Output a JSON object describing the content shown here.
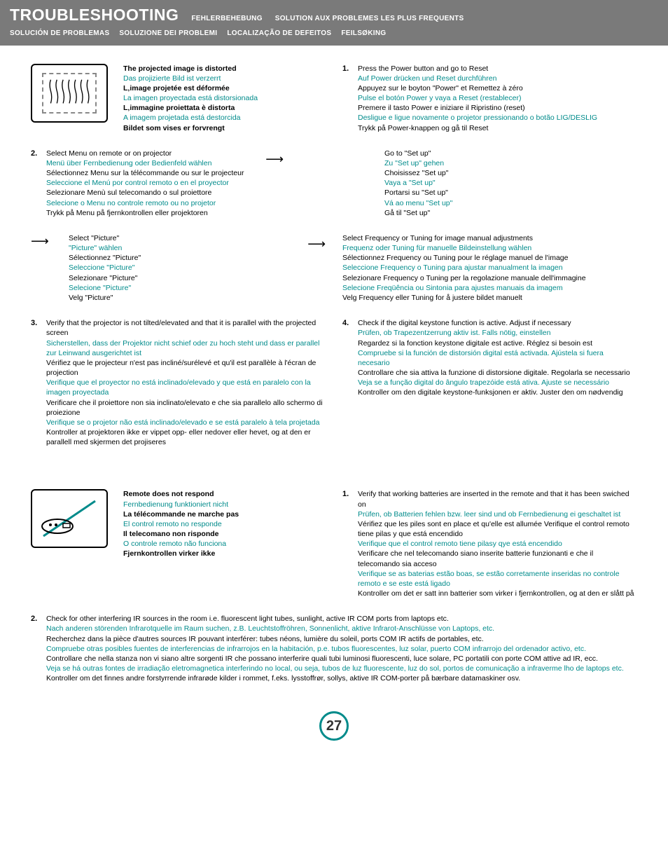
{
  "header": {
    "title": "TROUBLESHOOTING",
    "subs_row1": [
      "FEHLERBEHEBUNG",
      "SOLUTION AUX PROBLEMES LES PLUS FREQUENTS"
    ],
    "subs_row2": [
      "SOLUCIÓN DE PROBLEMAS",
      "SOLUZIONE DEI PROBLEMI",
      "LOCALIZAÇÃO DE DEFEITOS",
      "FEILSØKING"
    ]
  },
  "colors": {
    "teal": "#008b8b",
    "header_bg": "#7a7a7a",
    "text": "#000000"
  },
  "section1": {
    "heading": [
      {
        "t": "The projected image is distorted",
        "bold": true
      },
      {
        "t": "Das projizierte Bild ist verzerrt",
        "teal": true
      },
      {
        "t": "L‚image projetée est déformée",
        "bold": true
      },
      {
        "t": "La imagen proyectada está distorsionada",
        "teal": true
      },
      {
        "t": "L‚immagine proiettata è distorta",
        "bold": true
      },
      {
        "t": "A imagem projetada está destorcida",
        "teal": true
      },
      {
        "t": "Bildet som vises er forvrengt",
        "bold": true
      }
    ],
    "step1": {
      "num": "1.",
      "lines": [
        {
          "t": "Press the Power button and go to Reset"
        },
        {
          "t": "Auf Power drücken und Reset durchführen",
          "teal": true
        },
        {
          "t": "Appuyez sur le boyton \"Power\" et Remettez à zéro"
        },
        {
          "t": "Pulse el botón Power y vaya a Reset (restablecer)",
          "teal": true
        },
        {
          "t": "Premere il tasto Power e iniziare il Ripristino (reset)"
        },
        {
          "t": "Desligue e ligue novamente o projetor pressionando o botão LIG/DESLIG",
          "teal": true
        },
        {
          "t": "Trykk på Power-knappen og gå til Reset"
        }
      ]
    },
    "step2": {
      "num": "2.",
      "left": [
        {
          "t": "Select Menu on remote or on projector"
        },
        {
          "t": "Menü über Fernbedienung oder Bedienfeld wählen",
          "teal": true
        },
        {
          "t": "Sélectionnez Menu sur la télécommande ou sur le projecteur"
        },
        {
          "t": "Seleccione el Menú por control remoto o en el proyector",
          "teal": true
        },
        {
          "t": "Selezionare Menù sul telecomando o sul proiettore"
        },
        {
          "t": "Selecione o Menu no controle remoto ou no projetor",
          "teal": true
        },
        {
          "t": "Trykk på Menu på fjernkontrollen eller projektoren"
        }
      ],
      "right": [
        {
          "t": "Go to \"Set up\""
        },
        {
          "t": "Zu \"Set up\" gehen",
          "teal": true
        },
        {
          "t": "Choisissez \"Set up\""
        },
        {
          "t": "Vaya a \"Set up\"",
          "teal": true
        },
        {
          "t": "Portarsi su \"Set up\""
        },
        {
          "t": "Vá ao menu \"Set up\"",
          "teal": true
        },
        {
          "t": "Gå til \"Set up\""
        }
      ]
    },
    "picture": {
      "left": [
        {
          "t": "Select \"Picture\""
        },
        {
          "t": "\"Picture\" wählen",
          "teal": true
        },
        {
          "t": "Sélectionnez \"Picture\""
        },
        {
          "t": "Seleccione \"Picture\"",
          "teal": true
        },
        {
          "t": "Selezionare \"Picture\""
        },
        {
          "t": "Selecione \"Picture\"",
          "teal": true
        },
        {
          "t": "Velg \"Picture\""
        }
      ],
      "right": [
        {
          "t": "Select Frequency or Tuning for image manual adjustments"
        },
        {
          "t": "Frequenz oder Tuning für manuelle Bildeinstellung wählen",
          "teal": true
        },
        {
          "t": "Sélectionnez Frequency ou Tuning pour le réglage manuel de l'image"
        },
        {
          "t": "Seleccione Frequency o Tuning para ajustar manualment la imagen",
          "teal": true
        },
        {
          "t": "Selezionare Frequency o Tuning per la regolazione manuale dell'immagine"
        },
        {
          "t": "Selecione Freqüência ou Sintonia para ajustes manuais da imagem",
          "teal": true
        },
        {
          "t": "Velg Frequency eller Tuning for å justere bildet manuelt"
        }
      ]
    },
    "step3": {
      "num": "3.",
      "lines": [
        {
          "t": "Verify that the projector is not tilted/elevated and that it is parallel with the projected screen"
        },
        {
          "t": "Sicherstellen, dass der Projektor nicht schief oder zu hoch steht und dass er parallel zur Leinwand ausgerichtet ist",
          "teal": true
        },
        {
          "t": "Vérifiez que le projecteur n'est pas incliné/surélevé et qu'il est parallèle à l'écran de projection"
        },
        {
          "t": "Verifique que el proyector no está inclinado/elevado y que está en paralelo con la imagen proyectada",
          "teal": true
        },
        {
          "t": "Verificare che il proiettore non sia inclinato/elevato e che sia parallelo allo schermo di proiezione"
        },
        {
          "t": "Verifique se o projetor não está inclinado/elevado e se está paralelo à tela projetada",
          "teal": true
        },
        {
          "t": "Kontroller at projektoren ikke er vippet opp- eller nedover eller hevet, og at den er parallell med skjermen det projiseres"
        }
      ]
    },
    "step4": {
      "num": "4.",
      "lines": [
        {
          "t": "Check if the digital keystone function is active. Adjust if necessary"
        },
        {
          "t": "Prüfen, ob Trapezentzerrung aktiv ist. Falls nötig, einstellen",
          "teal": true
        },
        {
          "t": "Regardez si la fonction keystone digitale est active. Réglez si besoin est"
        },
        {
          "t": "Compruebe si la función de distorsión digital está activada. Ajústela si fuera necesario",
          "teal": true
        },
        {
          "t": "Controllare che sia attiva la funzione di distorsione digitale. Regolarla se necessario"
        },
        {
          "t": "Veja se a função digital do ângulo trapezóide está ativa. Ajuste se necessário",
          "teal": true
        },
        {
          "t": "Kontroller om den digitale keystone-funksjonen er aktiv. Juster den om nødvendig"
        }
      ]
    }
  },
  "section2": {
    "heading": [
      {
        "t": "Remote does not respond",
        "bold": true
      },
      {
        "t": "Fernbedienung funktioniert nicht",
        "teal": true
      },
      {
        "t": "La télécommande ne marche pas",
        "bold": true
      },
      {
        "t": "El control remoto no responde",
        "teal": true
      },
      {
        "t": "Il telecomano non risponde",
        "bold": true
      },
      {
        "t": "O controle remoto não funciona",
        "teal": true
      },
      {
        "t": "Fjernkontrollen virker ikke",
        "bold": true
      }
    ],
    "step1": {
      "num": "1.",
      "lines": [
        {
          "t": "Verify that working batteries are inserted in the remote and that it has been swiched on"
        },
        {
          "t": "Prüfen, ob Batterien fehlen bzw. leer sind und ob Fernbedienung ei geschaltet ist",
          "teal": true
        },
        {
          "t": "Vérifiez que les piles sont en place et qu'elle est allumée Verifique el control remoto tiene pilas y que está encendido"
        },
        {
          "t": "Verifique que el control remoto tiene pilasy qye está encendido",
          "teal": true
        },
        {
          "t": "Verificare che nel telecomando siano inserite batterie funzionanti e che il telecomando sia acceso"
        },
        {
          "t": "Verifique se as baterias estão boas, se estão corretamente inseridas no controle remoto e se este está ligado",
          "teal": true
        },
        {
          "t": "Kontroller om det er satt inn batterier som virker i fjernkontrollen, og at den er slått på"
        }
      ]
    },
    "step2": {
      "num": "2.",
      "lines": [
        {
          "t": "Check for other interfering IR sources in the room i.e. fluorescent light tubes, sunlight, active IR COM ports from laptops etc."
        },
        {
          "t": "Nach anderen störenden Infrarotquelle im Raum suchen, z.B. Leuchtstoffröhren, Sonnenlicht, aktive Infrarot-Anschlüsse von Laptops, etc.",
          "teal": true
        },
        {
          "t": "Recherchez dans la pièce d'autres sources IR pouvant interférer: tubes néons, lumière du soleil, ports COM IR actifs de portables, etc."
        },
        {
          "t": "Compruebe otras posibles fuentes de interferencias de infrarrojos en la habitación, p.e. tubos fluorescentes, luz solar, puerto COM infrarrojo del ordenador activo, etc.",
          "teal": true
        },
        {
          "t": "Controllare che nella stanza non vi siano altre sorgenti IR che possano interferire quali tubi luminosi fluorescenti, luce solare, PC portatili con porte COM attive ad IR, ecc."
        },
        {
          "t": "Veja se há outras fontes de irradiação eletromagnetica interferindo no local, ou seja, tubos de luz fluorescente, luz do sol, portos de comunicação a infraverme lho de laptops etc.",
          "teal": true
        },
        {
          "t": "Kontroller om det finnes andre forstyrrende infrarøde kilder i rommet, f.eks. lysstoffrør, sollys, aktive IR COM-porter på bærbare datamaskiner osv."
        }
      ]
    }
  },
  "page": "27"
}
